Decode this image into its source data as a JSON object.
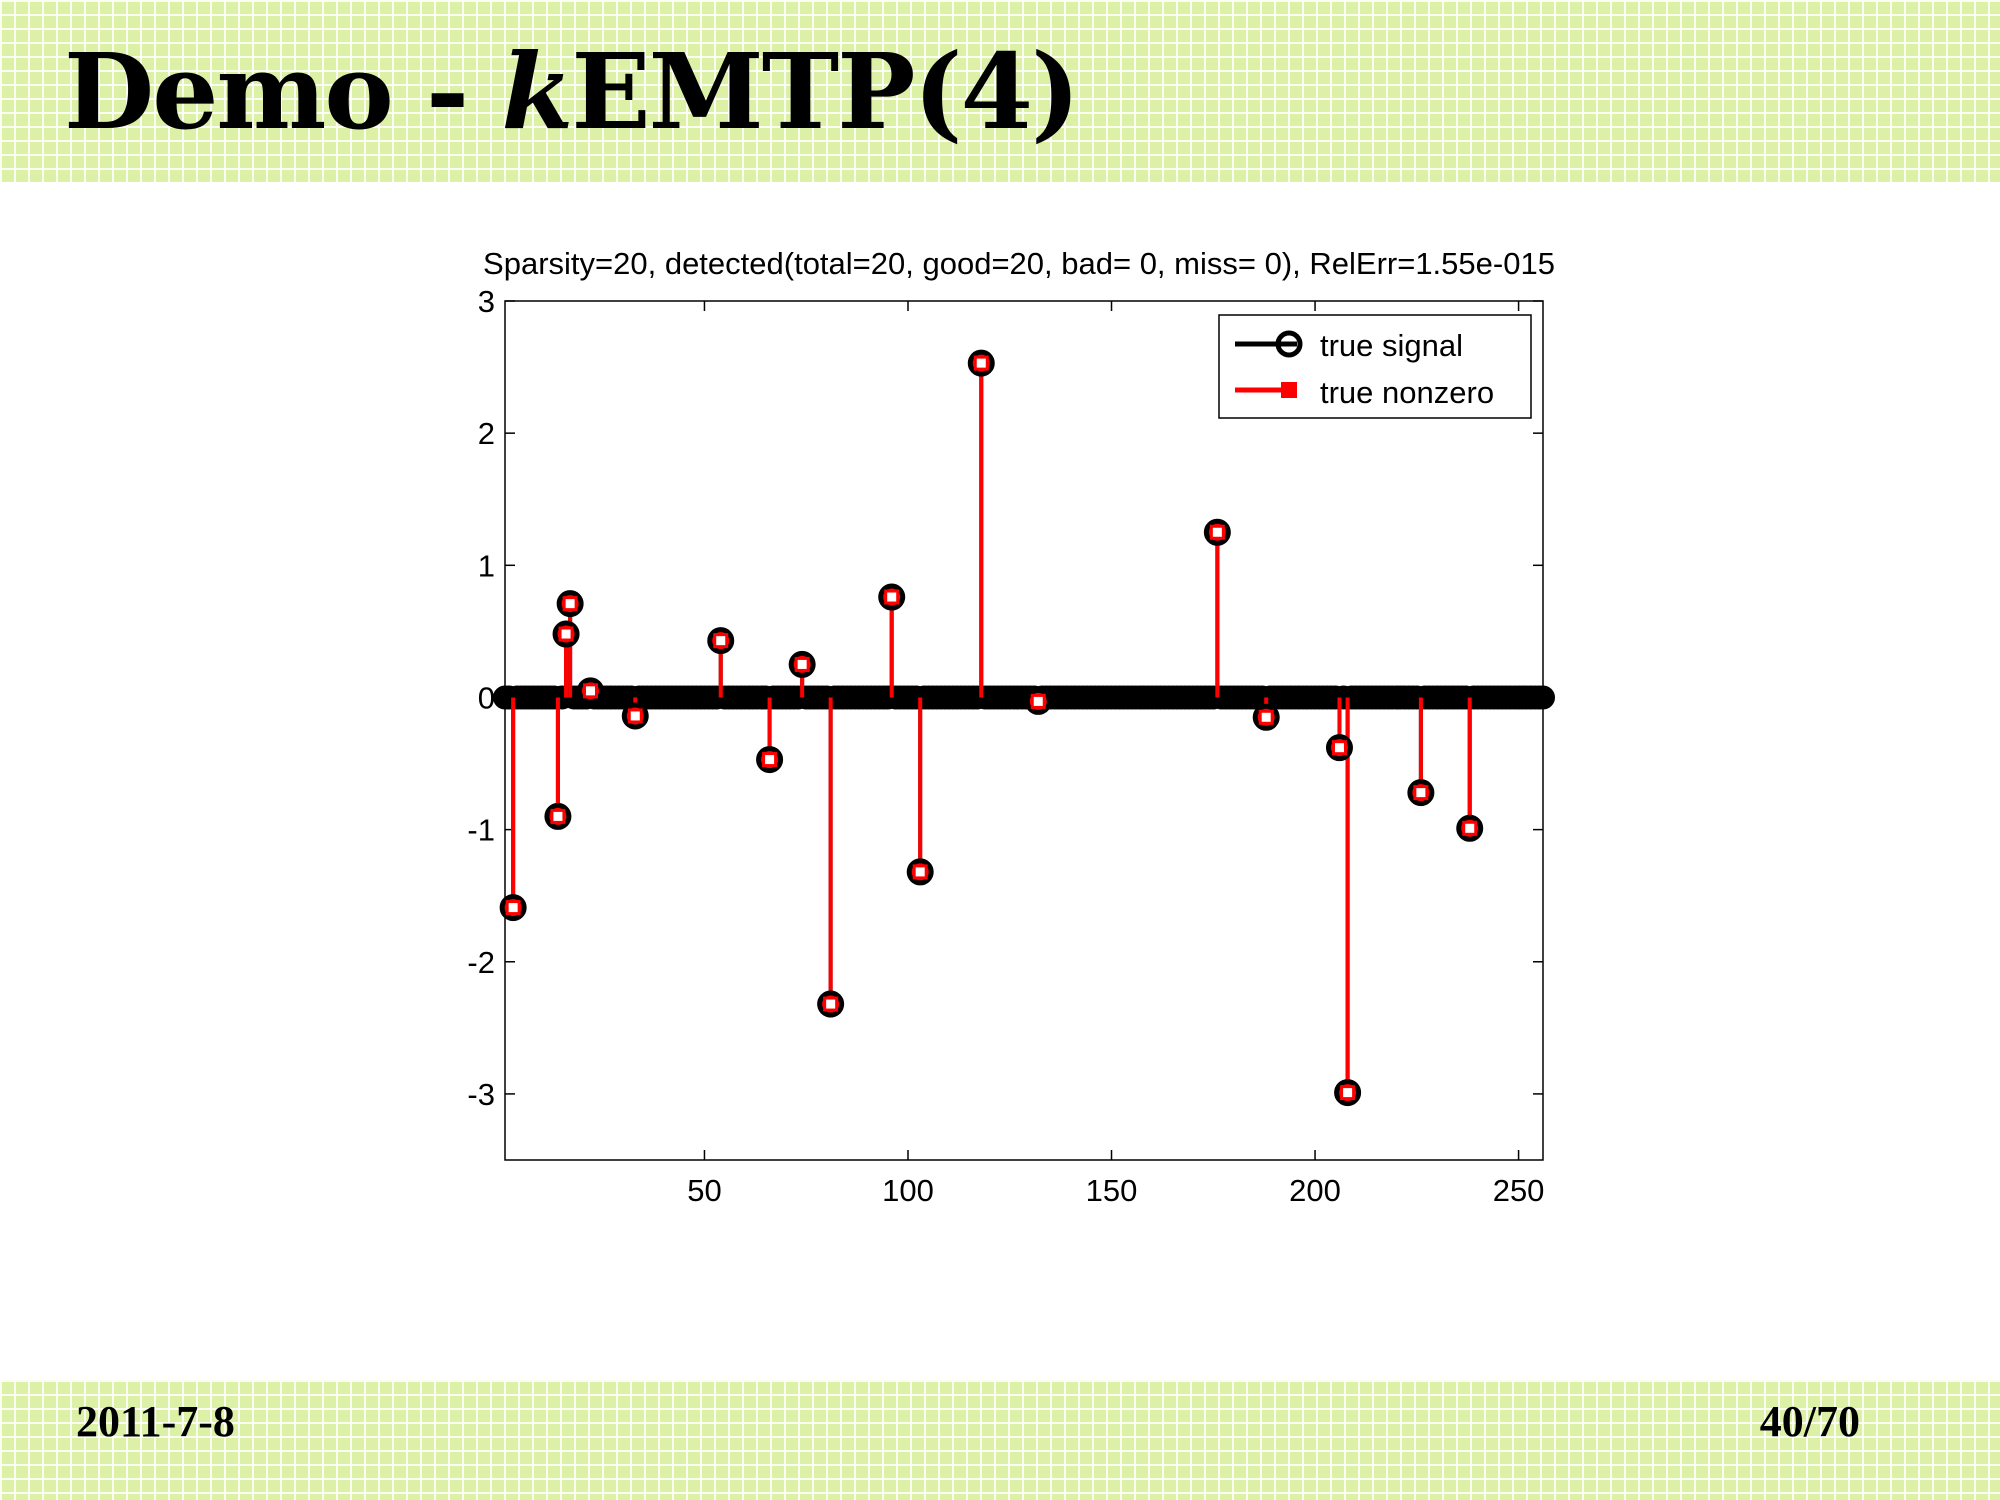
{
  "slide": {
    "title_prefix": "Demo - ",
    "title_k": "k",
    "title_suffix": "EMTP(4)",
    "date": "2011-7-8",
    "page": "40/70"
  },
  "colors": {
    "band": "#dcf0a6",
    "true_signal": "#000000",
    "true_nonzero": "#ff0000"
  },
  "chart_data": {
    "type": "stem",
    "title": "Sparsity=20, detected(total=20, good=20, bad= 0, miss= 0), RelErr=1.55e-015",
    "xlabel": "",
    "ylabel": "",
    "xlim": [
      1,
      256
    ],
    "ylim": [
      -3.5,
      3
    ],
    "xticks": [
      50,
      100,
      150,
      200,
      250
    ],
    "yticks": [
      -3,
      -2,
      -1,
      0,
      1,
      2,
      3
    ],
    "grid": false,
    "legend_position": "top-right",
    "series": [
      {
        "name": "true signal",
        "marker": "circle",
        "color": "#000000",
        "n": 256,
        "points": [
          {
            "x": 3,
            "y": -1.59
          },
          {
            "x": 14,
            "y": -0.9
          },
          {
            "x": 16,
            "y": 0.48
          },
          {
            "x": 17,
            "y": 0.71
          },
          {
            "x": 22,
            "y": 0.05
          },
          {
            "x": 33,
            "y": -0.14
          },
          {
            "x": 54,
            "y": 0.43
          },
          {
            "x": 66,
            "y": -0.47
          },
          {
            "x": 74,
            "y": 0.25
          },
          {
            "x": 81,
            "y": -2.32
          },
          {
            "x": 96,
            "y": 0.76
          },
          {
            "x": 103,
            "y": -1.32
          },
          {
            "x": 118,
            "y": 2.53
          },
          {
            "x": 132,
            "y": -0.03
          },
          {
            "x": 176,
            "y": 1.25
          },
          {
            "x": 188,
            "y": -0.15
          },
          {
            "x": 206,
            "y": -0.38
          },
          {
            "x": 208,
            "y": -2.99
          },
          {
            "x": 226,
            "y": -0.72
          },
          {
            "x": 238,
            "y": -0.99
          }
        ]
      },
      {
        "name": "true nonzero",
        "marker": "square",
        "color": "#ff0000",
        "points": [
          {
            "x": 3,
            "y": -1.59
          },
          {
            "x": 14,
            "y": -0.9
          },
          {
            "x": 16,
            "y": 0.48
          },
          {
            "x": 17,
            "y": 0.71
          },
          {
            "x": 22,
            "y": 0.05
          },
          {
            "x": 33,
            "y": -0.14
          },
          {
            "x": 54,
            "y": 0.43
          },
          {
            "x": 66,
            "y": -0.47
          },
          {
            "x": 74,
            "y": 0.25
          },
          {
            "x": 81,
            "y": -2.32
          },
          {
            "x": 96,
            "y": 0.76
          },
          {
            "x": 103,
            "y": -1.32
          },
          {
            "x": 118,
            "y": 2.53
          },
          {
            "x": 132,
            "y": -0.03
          },
          {
            "x": 176,
            "y": 1.25
          },
          {
            "x": 188,
            "y": -0.15
          },
          {
            "x": 206,
            "y": -0.38
          },
          {
            "x": 208,
            "y": -2.99
          },
          {
            "x": 226,
            "y": -0.72
          },
          {
            "x": 238,
            "y": -0.99
          }
        ]
      }
    ]
  }
}
